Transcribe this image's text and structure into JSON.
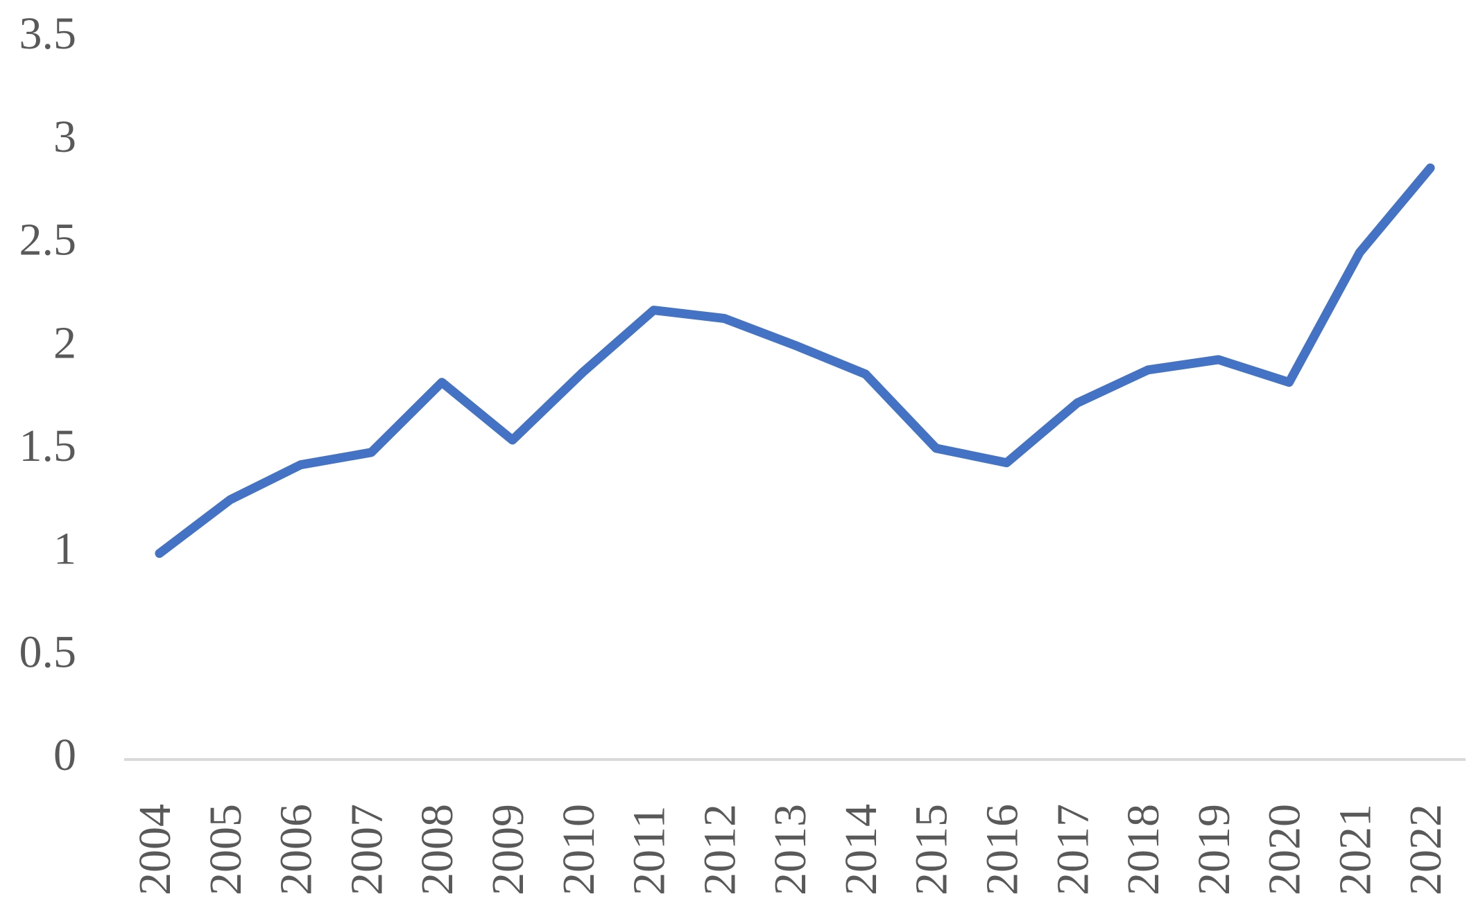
{
  "chart_data": {
    "type": "line",
    "categories": [
      "2004",
      "2005",
      "2006",
      "2007",
      "2008",
      "2009",
      "2010",
      "2011",
      "2012",
      "2013",
      "2014",
      "2015",
      "2016",
      "2017",
      "2018",
      "2019",
      "2020",
      "2021",
      "2022"
    ],
    "values": [
      1.0,
      1.26,
      1.43,
      1.49,
      1.83,
      1.55,
      1.88,
      2.18,
      2.14,
      2.01,
      1.87,
      1.51,
      1.44,
      1.73,
      1.89,
      1.94,
      1.83,
      2.46,
      2.87
    ],
    "color": "#4472c4",
    "ylim": [
      0,
      3.5
    ],
    "yticks": [
      0,
      0.5,
      1,
      1.5,
      2,
      2.5,
      3,
      3.5
    ],
    "grid": false
  }
}
